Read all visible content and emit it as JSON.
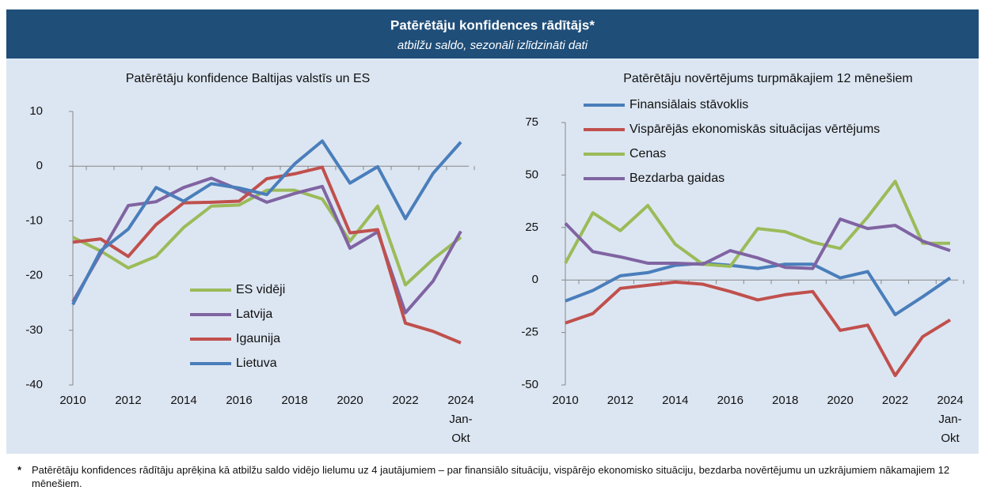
{
  "header": {
    "title": "Patērētāju konfidences rādītājs*",
    "subtitle": "atbilžu saldo, sezonāli izlīdzināti dati"
  },
  "chart_data": [
    {
      "type": "line",
      "title": "Patērētāju konfidence Baltijas valstīs un ES",
      "categories": [
        "2010",
        null,
        "2012",
        null,
        "2014",
        null,
        "2016",
        null,
        "2018",
        null,
        "2020",
        null,
        "2022",
        null,
        "2024 Jan-Okt"
      ],
      "ylim": [
        -40,
        10
      ],
      "yticks": [
        -40,
        -30,
        -20,
        -10,
        0,
        10
      ],
      "grid": false,
      "legend": "lower center",
      "series": [
        {
          "name": "ES vidēji",
          "color": "#9bbb59",
          "values": [
            -13,
            -15.5,
            -18.6,
            -16.5,
            -11.2,
            -7.3,
            -7.1,
            -4.4,
            -4.4,
            -6,
            -13.7,
            -7.3,
            -21.7,
            -17,
            -13
          ]
        },
        {
          "name": "Latvija",
          "color": "#8064a2",
          "values": [
            -24.8,
            -16,
            -7.2,
            -6.5,
            -3.9,
            -2.2,
            -4.3,
            -6.6,
            -5,
            -3.7,
            -15,
            -12,
            -26.8,
            -21,
            -11.9
          ]
        },
        {
          "name": "Igaunija",
          "color": "#c0504d",
          "values": [
            -13.9,
            -13.3,
            -16.5,
            -10.7,
            -6.7,
            -6.6,
            -6.4,
            -2.3,
            -1.4,
            -0.2,
            -12.2,
            -11.6,
            -28.7,
            -30.2,
            -32.3
          ]
        },
        {
          "name": "Lietuva",
          "color": "#4a7ebb",
          "values": [
            -25.3,
            -15.5,
            -11.5,
            -3.9,
            -6.4,
            -3.2,
            -4,
            -5.2,
            0.4,
            4.6,
            -3.1,
            -0.1,
            -9.6,
            -1.3,
            4.4
          ]
        }
      ]
    },
    {
      "type": "line",
      "title": "Patērētāju novērtējums turpmākajiem 12 mēnešiem",
      "categories": [
        "2010",
        null,
        "2012",
        null,
        "2014",
        null,
        "2016",
        null,
        "2018",
        null,
        "2020",
        null,
        "2022",
        null,
        "2024 Jan-Okt"
      ],
      "ylim": [
        -50,
        75
      ],
      "yticks": [
        -50,
        -25,
        0,
        25,
        50,
        75
      ],
      "grid": false,
      "legend": "upper left",
      "series": [
        {
          "name": "Finansiālais stāvoklis",
          "color": "#4a7ebb",
          "values": [
            -10,
            -5,
            2,
            3.5,
            7,
            8,
            7,
            5.5,
            7.5,
            7.5,
            1,
            4,
            -16.5,
            -8,
            1
          ]
        },
        {
          "name": "Vispārējās ekonomiskās situācijas vērtējums",
          "color": "#c0504d",
          "values": [
            -20.5,
            -16,
            -4,
            -2.5,
            -1,
            -2,
            -5.5,
            -9.5,
            -7,
            -5.5,
            -24,
            -21.5,
            -45.5,
            -27,
            -19
          ]
        },
        {
          "name": "Cenas",
          "color": "#9bbb59",
          "values": [
            8,
            32,
            23.5,
            35.5,
            17,
            7.5,
            6.5,
            24.5,
            23,
            18,
            15,
            30,
            47,
            17.5,
            17.5
          ]
        },
        {
          "name": "Bezdarba gaidas",
          "color": "#8064a2",
          "values": [
            27,
            13.5,
            11,
            8,
            8,
            7.5,
            14,
            10.5,
            6,
            5.5,
            29,
            24.5,
            26,
            18.5,
            14
          ]
        }
      ]
    }
  ],
  "footnote": {
    "marker": "*",
    "text": "Patērētāju konfidences rādītāju aprēķina kā atbilžu saldo vidējo lielumu uz 4 jautājumiem – par finansiālo situāciju, vispārējo ekonomisko situāciju, bezdarba novērtējumu un uzkrājumiem nākamajiem 12 mēnešiem."
  }
}
